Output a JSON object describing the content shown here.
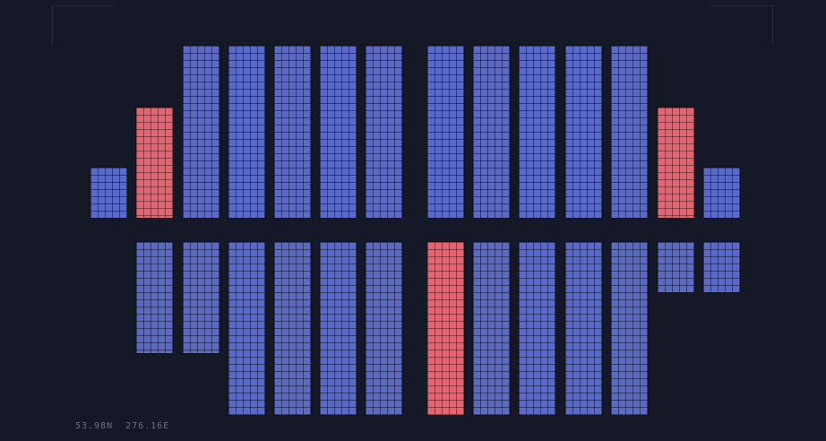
{
  "colors": {
    "background": "#151826",
    "block_blue": "#5b6ac6",
    "block_red": "#e46570",
    "label": "#6b7084"
  },
  "coordinates": {
    "latitude": "53.98N",
    "longitude": "276.16E"
  },
  "top_row": [
    {
      "state": "blue"
    },
    {
      "state": "red"
    },
    {
      "state": "blue"
    },
    {
      "state": "blue"
    },
    {
      "state": "blue"
    },
    {
      "state": "blue"
    },
    {
      "state": "blue"
    },
    {
      "state": "blue"
    },
    {
      "state": "blue"
    },
    {
      "state": "blue"
    },
    {
      "state": "blue"
    },
    {
      "state": "blue"
    },
    {
      "state": "red"
    },
    {
      "state": "blue"
    }
  ],
  "bottom_row": [
    {
      "state": "blue"
    },
    {
      "state": "blue"
    },
    {
      "state": "blue"
    },
    {
      "state": "blue"
    },
    {
      "state": "blue"
    },
    {
      "state": "blue"
    },
    {
      "state": "red"
    },
    {
      "state": "blue"
    },
    {
      "state": "blue"
    },
    {
      "state": "blue"
    },
    {
      "state": "blue"
    },
    {
      "state": "blue"
    },
    {
      "state": "blue"
    }
  ]
}
